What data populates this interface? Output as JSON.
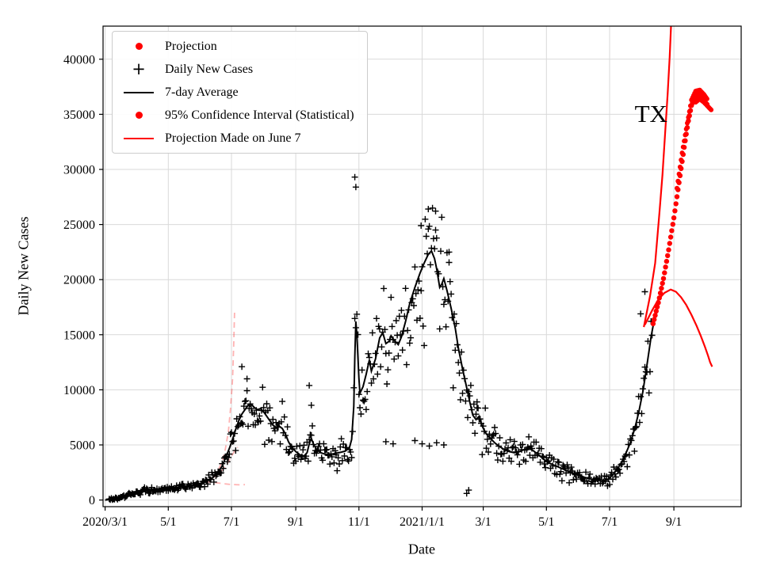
{
  "chart_data": {
    "type": "scatter",
    "title": "",
    "xlabel": "Date",
    "ylabel": "Daily New Cases",
    "x_unit": "days since 2020/3/1",
    "xlim_days": [
      -2,
      614
    ],
    "ylim": [
      -600,
      43000
    ],
    "grid": true,
    "colors": {
      "data": "#000000",
      "projection": "#ff0000",
      "grid": "#d9d9d9",
      "faded": "rgba(255,0,0,0.3)"
    },
    "x_ticks": [
      {
        "day": 0,
        "label": "2020/3/1"
      },
      {
        "day": 61,
        "label": "5/1"
      },
      {
        "day": 122,
        "label": "7/1"
      },
      {
        "day": 184,
        "label": "9/1"
      },
      {
        "day": 245,
        "label": "11/1"
      },
      {
        "day": 306,
        "label": "2021/1/1"
      },
      {
        "day": 365,
        "label": "3/1"
      },
      {
        "day": 426,
        "label": "5/1"
      },
      {
        "day": 487,
        "label": "7/1"
      },
      {
        "day": 549,
        "label": "9/1"
      }
    ],
    "y_ticks": [
      0,
      5000,
      10000,
      15000,
      20000,
      25000,
      30000,
      35000,
      40000
    ],
    "legend": [
      {
        "label": "Projection",
        "type": "dot",
        "color": "#ff0000"
      },
      {
        "label": "Daily New Cases",
        "type": "plus",
        "color": "#000000",
        "glyph": "+"
      },
      {
        "label": "7-day Average",
        "type": "line",
        "color": "#000000"
      },
      {
        "label": "95% Confidence Interval (Statistical)",
        "type": "dot",
        "color": "#ff0000"
      },
      {
        "label": "Projection Made on June 7",
        "type": "line",
        "color": "#ff0000"
      }
    ],
    "annotations": [
      {
        "text": "TX",
        "day": 527,
        "value": 34300
      }
    ],
    "series": {
      "seven_day_average": {
        "name": "7-day Average",
        "color": "#000000",
        "points": [
          [
            0,
            0
          ],
          [
            6,
            60
          ],
          [
            12,
            160
          ],
          [
            18,
            330
          ],
          [
            24,
            520
          ],
          [
            31,
            700
          ],
          [
            38,
            820
          ],
          [
            45,
            900
          ],
          [
            52,
            950
          ],
          [
            61,
            1050
          ],
          [
            70,
            1150
          ],
          [
            80,
            1280
          ],
          [
            90,
            1450
          ],
          [
            97,
            1650
          ],
          [
            103,
            1950
          ],
          [
            108,
            2400
          ],
          [
            113,
            3100
          ],
          [
            117,
            4000
          ],
          [
            120,
            4700
          ],
          [
            123,
            5500
          ],
          [
            126,
            6400
          ],
          [
            129,
            7200
          ],
          [
            132,
            7800
          ],
          [
            135,
            8200
          ],
          [
            138,
            8600
          ],
          [
            141,
            8700
          ],
          [
            144,
            8400
          ],
          [
            147,
            8200
          ],
          [
            150,
            8300
          ],
          [
            153,
            8000
          ],
          [
            156,
            7600
          ],
          [
            159,
            7200
          ],
          [
            162,
            6800
          ],
          [
            165,
            6600
          ],
          [
            168,
            6700
          ],
          [
            171,
            6500
          ],
          [
            174,
            6000
          ],
          [
            177,
            5300
          ],
          [
            180,
            4800
          ],
          [
            184,
            4400
          ],
          [
            188,
            4100
          ],
          [
            192,
            4000
          ],
          [
            195,
            4300
          ],
          [
            197,
            5100
          ],
          [
            199,
            5600
          ],
          [
            201,
            5100
          ],
          [
            204,
            4600
          ],
          [
            208,
            4300
          ],
          [
            213,
            4150
          ],
          [
            218,
            4150
          ],
          [
            223,
            4250
          ],
          [
            228,
            4350
          ],
          [
            232,
            4450
          ],
          [
            236,
            4800
          ],
          [
            238,
            5500
          ],
          [
            240,
            8500
          ],
          [
            241,
            13000
          ],
          [
            242,
            16200
          ],
          [
            243,
            15000
          ],
          [
            245,
            11000
          ],
          [
            246,
            9700
          ],
          [
            249,
            10300
          ],
          [
            252,
            11400
          ],
          [
            255,
            12700
          ],
          [
            257,
            11700
          ],
          [
            261,
            12800
          ],
          [
            265,
            14700
          ],
          [
            268,
            15200
          ],
          [
            271,
            14200
          ],
          [
            274,
            14400
          ],
          [
            276,
            14900
          ],
          [
            279,
            14500
          ],
          [
            283,
            14100
          ],
          [
            286,
            14800
          ],
          [
            290,
            16200
          ],
          [
            294,
            17800
          ],
          [
            299,
            19300
          ],
          [
            304,
            20600
          ],
          [
            308,
            21500
          ],
          [
            312,
            22300
          ],
          [
            315,
            22600
          ],
          [
            318,
            21900
          ],
          [
            320,
            21000
          ],
          [
            323,
            19300
          ],
          [
            325,
            19600
          ],
          [
            327,
            20100
          ],
          [
            330,
            19000
          ],
          [
            334,
            17400
          ],
          [
            338,
            15600
          ],
          [
            341,
            13800
          ],
          [
            345,
            11900
          ],
          [
            349,
            10200
          ],
          [
            352,
            8900
          ],
          [
            355,
            7700
          ],
          [
            358,
            7300
          ],
          [
            361,
            7600
          ],
          [
            364,
            6700
          ],
          [
            368,
            6000
          ],
          [
            372,
            5600
          ],
          [
            376,
            5200
          ],
          [
            380,
            4900
          ],
          [
            385,
            4600
          ],
          [
            390,
            4400
          ],
          [
            395,
            4300
          ],
          [
            400,
            4400
          ],
          [
            405,
            4600
          ],
          [
            409,
            4700
          ],
          [
            413,
            4500
          ],
          [
            417,
            4200
          ],
          [
            421,
            3900
          ],
          [
            426,
            3500
          ],
          [
            430,
            3300
          ],
          [
            435,
            3100
          ],
          [
            440,
            2900
          ],
          [
            445,
            2700
          ],
          [
            450,
            2500
          ],
          [
            455,
            2300
          ],
          [
            460,
            2150
          ],
          [
            465,
            2000
          ],
          [
            469,
            1900
          ],
          [
            473,
            1800
          ],
          [
            477,
            1850
          ],
          [
            481,
            1800
          ],
          [
            485,
            1850
          ],
          [
            487,
            2000
          ],
          [
            491,
            2400
          ],
          [
            495,
            2900
          ],
          [
            499,
            3500
          ],
          [
            503,
            4300
          ],
          [
            507,
            5200
          ],
          [
            511,
            6400
          ],
          [
            515,
            7900
          ],
          [
            519,
            9800
          ],
          [
            522,
            11600
          ],
          [
            525,
            13500
          ],
          [
            527,
            14800
          ],
          [
            529,
            15800
          ]
        ]
      },
      "daily_new_cases": {
        "name": "Daily New Cases",
        "marker": "plus",
        "color": "#000000",
        "noise": {
          "seed": 12,
          "rel_sigma": 0.13,
          "abs_sigma": 50,
          "start_day": 4,
          "end_day": 528,
          "weekly_dip_day": 0,
          "weekly_dip_factor": 0.82,
          "weekly_peak_day": 3,
          "weekly_peak_factor": 1.08
        },
        "outliers": [
          [
            132,
            12100
          ],
          [
            137,
            11000
          ],
          [
            197,
            10400
          ],
          [
            199,
            8600
          ],
          [
            241,
            29300
          ],
          [
            242,
            28400
          ],
          [
            271,
            5300
          ],
          [
            278,
            5100
          ],
          [
            299,
            5400
          ],
          [
            305,
            24900
          ],
          [
            306,
            5100
          ],
          [
            312,
            26400
          ],
          [
            313,
            4900
          ],
          [
            319,
            24500
          ],
          [
            320,
            5200
          ],
          [
            327,
            5000
          ],
          [
            332,
            22500
          ],
          [
            349,
            600
          ],
          [
            351,
            900
          ],
          [
            359,
            8900
          ],
          [
            517,
            16900
          ],
          [
            521,
            18900
          ]
        ]
      },
      "projection_dots": {
        "name": "Projection",
        "color": "#ff0000",
        "dot_radius": 3.2,
        "points": [
          [
            529,
            16000
          ],
          [
            534,
            17900
          ],
          [
            539,
            20100
          ],
          [
            544,
            22700
          ],
          [
            549,
            25600
          ],
          [
            554,
            28800
          ],
          [
            559,
            32000
          ],
          [
            563,
            34400
          ],
          [
            566,
            35800
          ],
          [
            569,
            36500
          ],
          [
            572,
            36800
          ],
          [
            575,
            36600
          ],
          [
            578,
            36200
          ],
          [
            581,
            35900
          ]
        ]
      },
      "ci_upper_dots": {
        "name": "95% Confidence Interval (Statistical)",
        "color": "#ff0000",
        "dot_radius": 3.0,
        "points": [
          [
            552,
            28300
          ],
          [
            557,
            31500
          ],
          [
            562,
            34200
          ],
          [
            566,
            36300
          ],
          [
            570,
            37100
          ],
          [
            574,
            37200
          ],
          [
            578,
            36800
          ],
          [
            581,
            36400
          ]
        ]
      },
      "ci_lower_dots": {
        "name": "95% Confidence Interval (Statistical)",
        "color": "#ff0000",
        "dot_radius": 3.0,
        "points": [
          [
            570,
            36100
          ],
          [
            574,
            36400
          ],
          [
            578,
            36100
          ],
          [
            582,
            35700
          ],
          [
            585,
            35400
          ]
        ]
      },
      "projection_line_steep": {
        "name": "Projection Made on June 7",
        "color": "#ff0000",
        "points": [
          [
            520,
            15700
          ],
          [
            526,
            18500
          ],
          [
            531,
            21500
          ],
          [
            535,
            26000
          ],
          [
            538,
            29500
          ],
          [
            541,
            33900
          ],
          [
            543,
            36800
          ],
          [
            545,
            40200
          ],
          [
            547,
            44500
          ]
        ]
      },
      "projection_line_decline": {
        "name": "Projection Made on June 7",
        "color": "#ff0000",
        "points": [
          [
            521,
            15900
          ],
          [
            528,
            17200
          ],
          [
            534,
            18200
          ],
          [
            540,
            18800
          ],
          [
            546,
            19100
          ],
          [
            551,
            18900
          ],
          [
            556,
            18400
          ],
          [
            561,
            17700
          ],
          [
            566,
            16800
          ],
          [
            571,
            15800
          ],
          [
            575,
            14900
          ],
          [
            579,
            13900
          ],
          [
            582,
            13100
          ],
          [
            584,
            12500
          ],
          [
            586,
            12100
          ]
        ]
      },
      "june7_projection_faded": {
        "name": "Projection Made on June 7 (2020, faded)",
        "color": "rgba(255,0,0,0.3)",
        "dash": "7 5",
        "segments": [
          [
            [
              97,
              1650
            ],
            [
              104,
              2100
            ],
            [
              109,
              2700
            ],
            [
              113,
              3500
            ],
            [
              116,
              4600
            ],
            [
              119,
              6200
            ],
            [
              121,
              8200
            ],
            [
              123,
              11000
            ],
            [
              124,
              13800
            ],
            [
              125,
              17300
            ]
          ],
          [
            [
              97,
              1650
            ],
            [
              104,
              2000
            ],
            [
              111,
              2500
            ],
            [
              118,
              3300
            ],
            [
              124,
              4300
            ],
            [
              128,
              4800
            ]
          ],
          [
            [
              97,
              1650
            ],
            [
              105,
              1600
            ],
            [
              113,
              1500
            ],
            [
              121,
              1420
            ],
            [
              129,
              1380
            ],
            [
              135,
              1400
            ]
          ]
        ]
      }
    }
  }
}
